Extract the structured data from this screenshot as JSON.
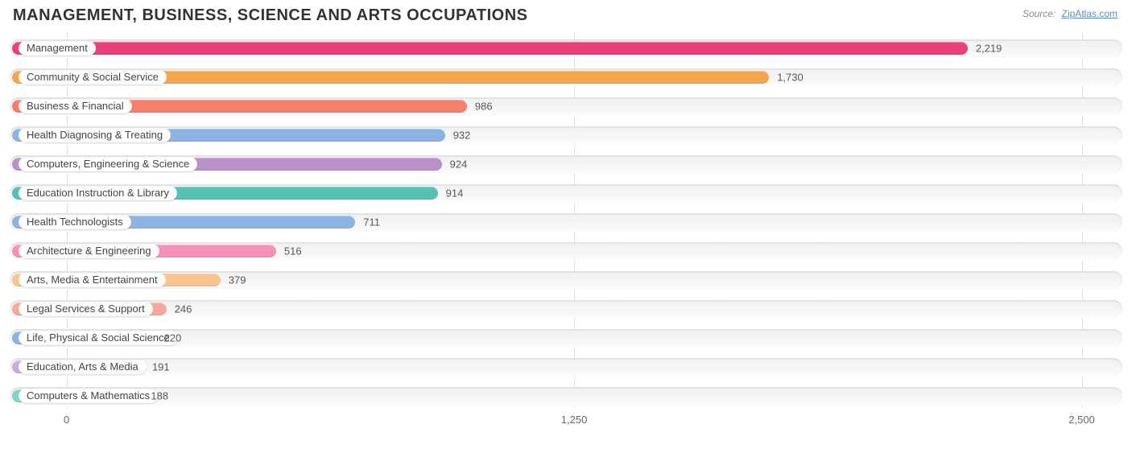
{
  "chart": {
    "type": "bar-horizontal",
    "title": "MANAGEMENT, BUSINESS, SCIENCE AND ARTS OCCUPATIONS",
    "source_label": "Source:",
    "source_name": "ZipAtlas.com",
    "title_color": "#333333",
    "title_fontsize": 20,
    "background_color": "#ffffff",
    "grid_color": "#dddddd",
    "label_fontsize": 13,
    "track_bg_top": "#f0f0f0",
    "track_bg_bottom": "#fafafa",
    "pill_bg": "#ffffff",
    "value_label_color": "#575757",
    "x_axis": {
      "min": -140,
      "max": 2600,
      "ticks": [
        0,
        1250,
        2500
      ],
      "tick_labels": [
        "0",
        "1,250",
        "2,500"
      ]
    },
    "bars": [
      {
        "category": "Management",
        "value": 2219,
        "label": "2,219",
        "color": "#eb4079"
      },
      {
        "category": "Community & Social Service",
        "value": 1730,
        "label": "1,730",
        "color": "#f4a64f"
      },
      {
        "category": "Business & Financial",
        "value": 986,
        "label": "986",
        "color": "#f57f6b"
      },
      {
        "category": "Health Diagnosing & Treating",
        "value": 932,
        "label": "932",
        "color": "#8cb4e2"
      },
      {
        "category": "Computers, Engineering & Science",
        "value": 924,
        "label": "924",
        "color": "#b990ca"
      },
      {
        "category": "Education Instruction & Library",
        "value": 914,
        "label": "914",
        "color": "#55c1b3"
      },
      {
        "category": "Health Technologists",
        "value": 711,
        "label": "711",
        "color": "#8cb4e2"
      },
      {
        "category": "Architecture & Engineering",
        "value": 516,
        "label": "516",
        "color": "#f590b6"
      },
      {
        "category": "Arts, Media & Entertainment",
        "value": 379,
        "label": "379",
        "color": "#f8c58f"
      },
      {
        "category": "Legal Services & Support",
        "value": 246,
        "label": "246",
        "color": "#f5a99c"
      },
      {
        "category": "Life, Physical & Social Science",
        "value": 220,
        "label": "220",
        "color": "#8cb4e2"
      },
      {
        "category": "Education, Arts & Media",
        "value": 191,
        "label": "191",
        "color": "#c9aed8"
      },
      {
        "category": "Computers & Mathematics",
        "value": 188,
        "label": "188",
        "color": "#7fd4c8"
      }
    ]
  }
}
